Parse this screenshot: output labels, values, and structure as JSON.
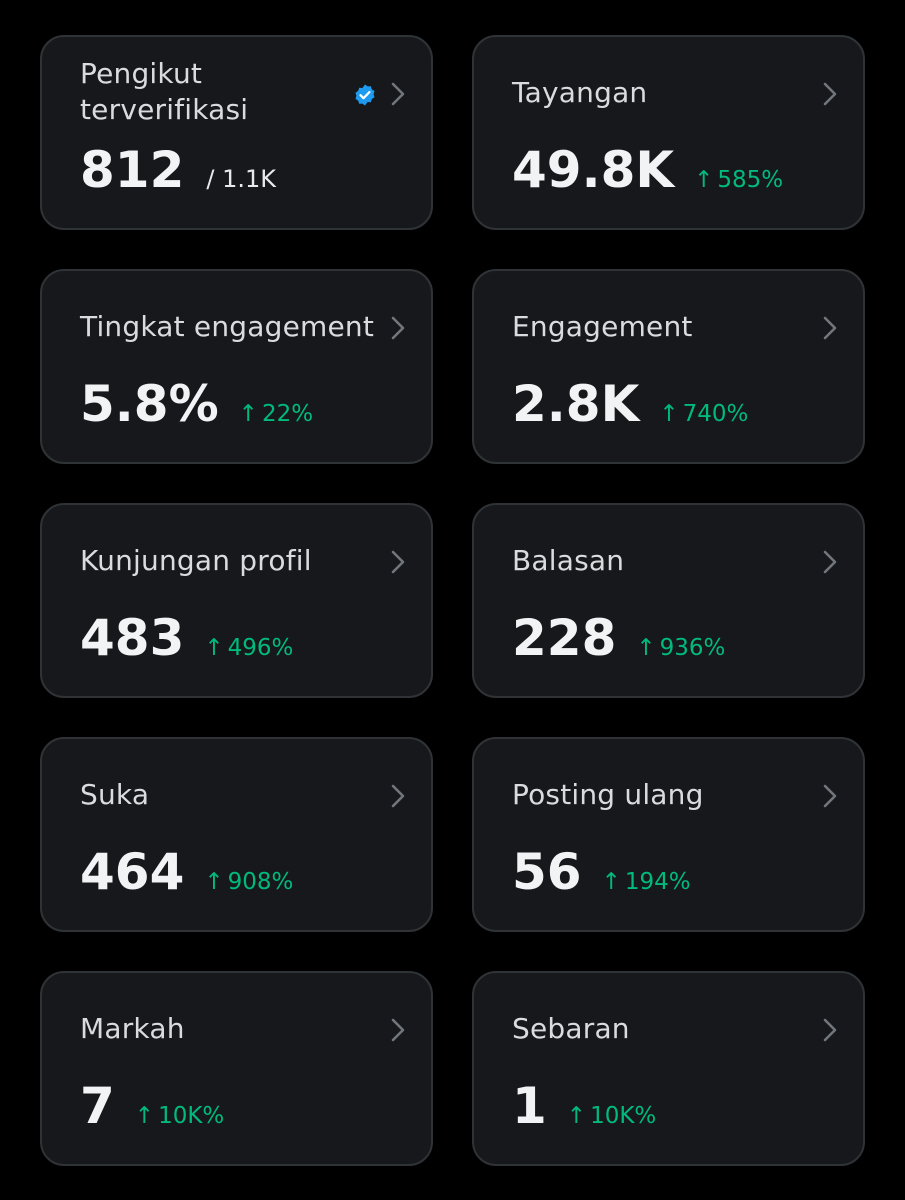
{
  "accent": {
    "positive": "#00ba7c",
    "verified": "#1d9bf0",
    "card_bg": "#16181c",
    "card_border": "#2f3336"
  },
  "cards": [
    {
      "label": "Pengikut terverifikasi",
      "value": "812",
      "total": "/ 1.1K",
      "verified_icon": "verified-badge-icon",
      "icon": "chevron-right-icon"
    },
    {
      "label": "Tayangan",
      "value": "49.8K",
      "change": "585%",
      "arrow": "↑",
      "icon": "chevron-right-icon"
    },
    {
      "label": "Tingkat engagement",
      "value": "5.8%",
      "change": "22%",
      "arrow": "↑",
      "icon": "chevron-right-icon"
    },
    {
      "label": "Engagement",
      "value": "2.8K",
      "change": "740%",
      "arrow": "↑",
      "icon": "chevron-right-icon"
    },
    {
      "label": "Kunjungan profil",
      "value": "483",
      "change": "496%",
      "arrow": "↑",
      "icon": "chevron-right-icon"
    },
    {
      "label": "Balasan",
      "value": "228",
      "change": "936%",
      "arrow": "↑",
      "icon": "chevron-right-icon"
    },
    {
      "label": "Suka",
      "value": "464",
      "change": "908%",
      "arrow": "↑",
      "icon": "chevron-right-icon"
    },
    {
      "label": "Posting ulang",
      "value": "56",
      "change": "194%",
      "arrow": "↑",
      "icon": "chevron-right-icon"
    },
    {
      "label": "Markah",
      "value": "7",
      "change": "10K%",
      "arrow": "↑",
      "icon": "chevron-right-icon"
    },
    {
      "label": "Sebaran",
      "value": "1",
      "change": "10K%",
      "arrow": "↑",
      "icon": "chevron-right-icon"
    }
  ]
}
